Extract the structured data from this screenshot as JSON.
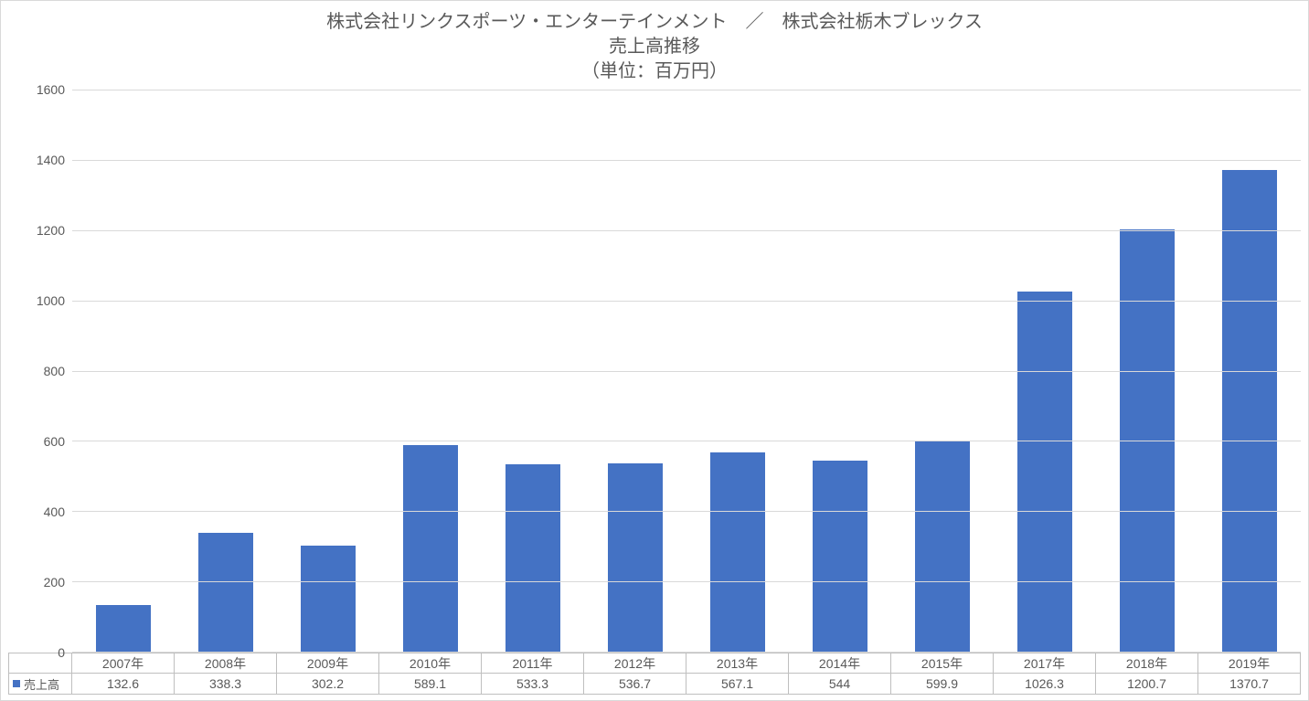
{
  "chart": {
    "type": "bar",
    "title_lines": [
      "株式会社リンクスポーツ・エンターテインメント　／　株式会社栃木ブレックス",
      "売上高推移",
      "（単位：百万円）"
    ],
    "title_fontsize": 20,
    "title_color": "#595959",
    "categories": [
      "2007年",
      "2008年",
      "2009年",
      "2010年",
      "2011年",
      "2012年",
      "2013年",
      "2014年",
      "2015年",
      "2017年",
      "2018年",
      "2019年"
    ],
    "series_name": "売上高",
    "values": [
      132.6,
      338.3,
      302.2,
      589.1,
      533.3,
      536.7,
      567.1,
      544,
      599.9,
      1026.3,
      1200.7,
      1370.7
    ],
    "bar_color": "#4472c4",
    "ylim": [
      0,
      1600
    ],
    "ytick_step": 200,
    "yticks": [
      0,
      200,
      400,
      600,
      800,
      1000,
      1200,
      1400,
      1600
    ],
    "grid_color": "#d9d9d9",
    "border_color": "#bfbfbf",
    "background_color": "#ffffff",
    "axis_fontsize": 14,
    "table_fontsize": 14,
    "bar_width_ratio": 0.54,
    "legend_swatch_color": "#4472c4"
  }
}
